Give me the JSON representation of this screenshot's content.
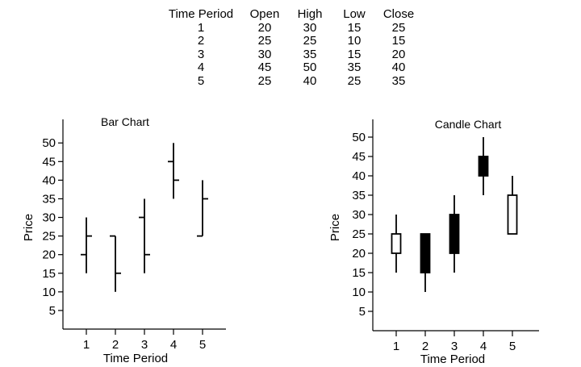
{
  "table": {
    "headers": [
      "Time Period",
      "Open",
      "High",
      "Low",
      "Close"
    ],
    "rows": [
      [
        "1",
        "20",
        "30",
        "15",
        "25"
      ],
      [
        "2",
        "25",
        "25",
        "10",
        "15"
      ],
      [
        "3",
        "30",
        "35",
        "15",
        "20"
      ],
      [
        "4",
        "45",
        "50",
        "35",
        "40"
      ],
      [
        "5",
        "25",
        "40",
        "25",
        "35"
      ]
    ]
  },
  "chart_data": [
    {
      "type": "bar",
      "style": "ohlc",
      "title": "Bar Chart",
      "xlabel": "Time Period",
      "ylabel": "Price",
      "categories": [
        "1",
        "2",
        "3",
        "4",
        "5"
      ],
      "open": [
        20,
        25,
        30,
        45,
        25
      ],
      "high": [
        30,
        25,
        35,
        50,
        40
      ],
      "low": [
        15,
        10,
        15,
        35,
        25
      ],
      "close": [
        25,
        15,
        20,
        40,
        35
      ],
      "yticks": [
        5,
        10,
        15,
        20,
        25,
        30,
        35,
        40,
        45,
        50
      ],
      "ylim": [
        0,
        52
      ],
      "grid": false,
      "legend": false
    },
    {
      "type": "bar",
      "style": "candlestick",
      "title": "Candle Chart",
      "xlabel": "Time Period",
      "ylabel": "Price",
      "categories": [
        "1",
        "2",
        "3",
        "4",
        "5"
      ],
      "open": [
        20,
        25,
        30,
        45,
        25
      ],
      "high": [
        30,
        25,
        35,
        50,
        40
      ],
      "low": [
        15,
        10,
        15,
        35,
        25
      ],
      "close": [
        25,
        15,
        20,
        40,
        35
      ],
      "yticks": [
        5,
        10,
        15,
        20,
        25,
        30,
        35,
        40,
        45,
        50
      ],
      "ylim": [
        0,
        52
      ],
      "grid": false,
      "legend": false,
      "colors": {
        "up": "#ffffff",
        "down": "#000000",
        "line": "#000000"
      }
    }
  ]
}
